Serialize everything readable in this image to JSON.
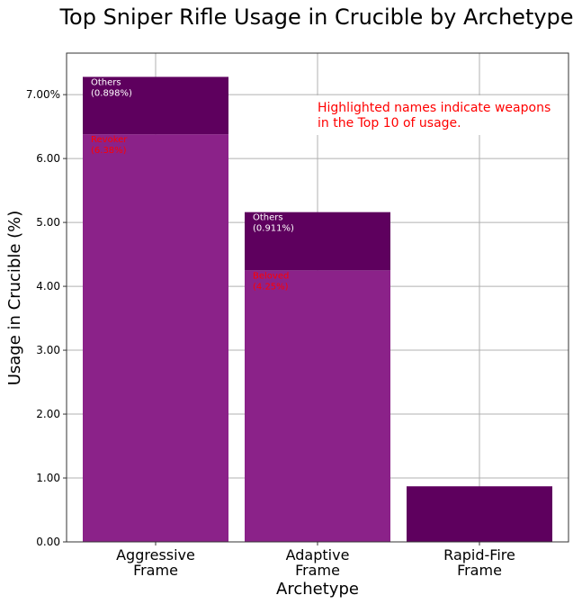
{
  "chart_data": {
    "type": "bar",
    "stacked": true,
    "title": "Top Sniper Rifle Usage in Crucible by Archetype",
    "xlabel": "Archetype",
    "ylabel": "Usage in Crucible (%)",
    "categories": [
      "Aggressive\nFrame",
      "Adaptive\nFrame",
      "Rapid-Fire\nFrame"
    ],
    "ylim": [
      0,
      7.65
    ],
    "yticks": [
      0,
      1,
      2,
      3,
      4,
      5,
      6,
      7
    ],
    "ytick_labels": [
      "0.00",
      "1.00",
      "2.00",
      "3.00",
      "4.00",
      "5.00",
      "6.00",
      "7.00%"
    ],
    "grid": true,
    "series": [
      {
        "values": [
          6.38,
          4.25,
          0
        ],
        "color": "#8b2289",
        "labels": [
          [
            "Revoker",
            "(6.38%)"
          ],
          [
            "Beloved",
            "(4.25%)"
          ],
          null
        ],
        "label_color": "#ff0000"
      },
      {
        "values": [
          0.898,
          0.911,
          0.87
        ],
        "color": "#5e005e",
        "labels": [
          [
            "Others",
            "(0.898%)"
          ],
          [
            "Others",
            "(0.911%)"
          ],
          null
        ],
        "label_color": "#ffffff"
      }
    ],
    "annotation": {
      "lines": [
        "Highlighted names indicate weapons",
        "in the Top 10 of usage."
      ],
      "color": "#ff0000",
      "position": "top-right"
    }
  }
}
